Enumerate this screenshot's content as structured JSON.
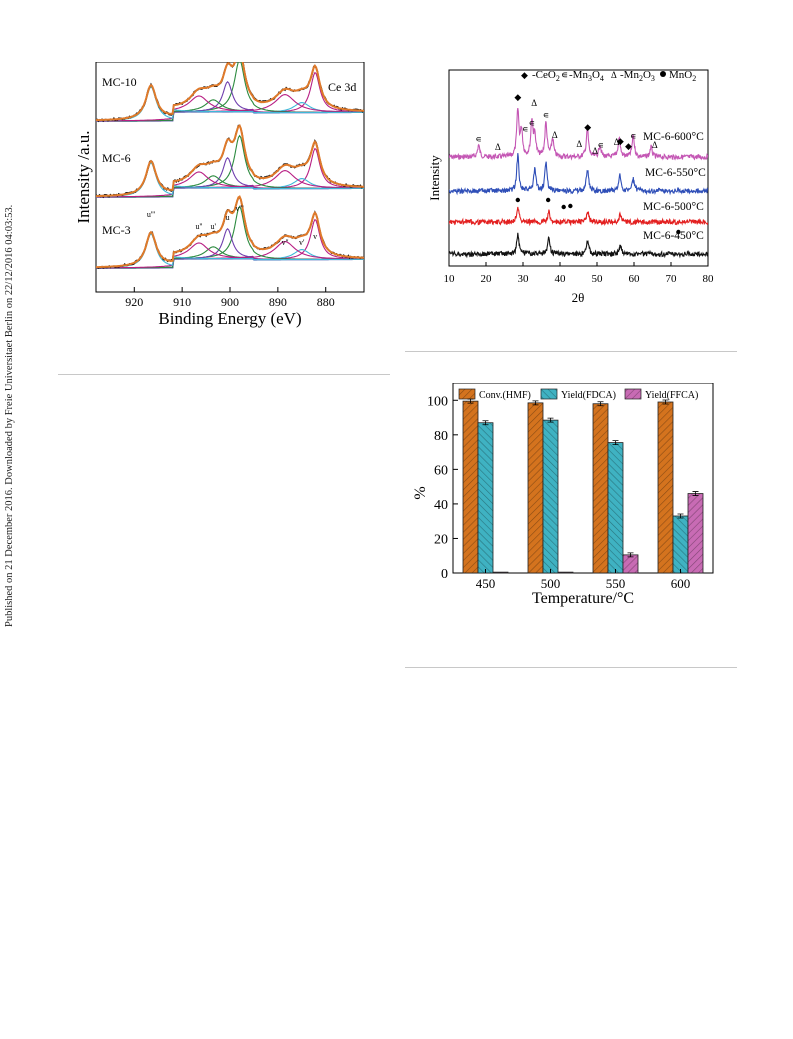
{
  "sidebar": {
    "text": "Published on 21 December 2016. Downloaded by Freie Universitaet Berlin on 22/12/2016 04:03:53."
  },
  "xps": {
    "ylabel": "Intensity /a.u.",
    "xlabel": "Binding Energy (eV)",
    "panel_label": "Ce 3d",
    "samples": [
      "MC-10",
      "MC-6",
      "MC-3"
    ],
    "peak_labels": [
      "u'''",
      "u''",
      "u'",
      "u",
      "v'''",
      "v''",
      "v'",
      "v"
    ],
    "xticks": [
      "920",
      "910",
      "900",
      "890",
      "880"
    ],
    "colors": {
      "envelope": "#e07a2a",
      "raw": "#111111",
      "baseline": "#1c3fa8",
      "v_peak": "#b81f84",
      "u_peak": "#6f3fae",
      "mid": "#2b8a3e",
      "accent": "#3fb8d8"
    }
  },
  "xrd": {
    "legend": {
      "ceo2": "-CeO",
      "mn3o4": "-Mn",
      "mn2o3": "-Mn",
      "mno2": "MnO"
    },
    "ylabel": "Intensity",
    "xlabel": "2θ",
    "xticks": [
      "10",
      "20",
      "30",
      "40",
      "50",
      "60",
      "70",
      "80"
    ],
    "samples": [
      "MC-6-600°C",
      "MC-6-550°C",
      "MC-6-500°C",
      "MC-6-450°C"
    ],
    "colors": [
      "#c456b4",
      "#2f4fb8",
      "#e32020",
      "#111111"
    ]
  },
  "bar": {
    "ylabel": "%",
    "xlabel": "Temperature/°C",
    "legend": [
      "Conv.(HMF)",
      "Yield(FDCA)",
      "Yield(FFCA)"
    ],
    "colors": [
      "#d4731e",
      "#3fb2c2",
      "#c86bb4"
    ],
    "yticks": [
      "0",
      "20",
      "40",
      "60",
      "80",
      "100"
    ]
  },
  "chart_data": [
    {
      "type": "line",
      "title": "",
      "xlabel": "Binding Energy (eV)",
      "ylabel": "Intensity /a.u.",
      "xlim": [
        928,
        872
      ],
      "annotation": "Ce 3d",
      "series": [
        {
          "name": "MC-10"
        },
        {
          "name": "MC-6"
        },
        {
          "name": "MC-3"
        }
      ],
      "peak_positions": {
        "u'''": 916.5,
        "u''": 906.5,
        "u'": 903.5,
        "u": 900.5,
        "v'''": 898.0,
        "v''": 888.5,
        "v'": 885.0,
        "v": 882.2
      }
    },
    {
      "type": "line",
      "xlabel": "2θ",
      "ylabel": "Intensity",
      "xlim": [
        10,
        80
      ],
      "series": [
        {
          "name": "MC-6-600°C"
        },
        {
          "name": "MC-6-550°C"
        },
        {
          "name": "MC-6-500°C"
        },
        {
          "name": "MC-6-450°C"
        }
      ]
    },
    {
      "type": "bar",
      "xlabel": "Temperature/°C",
      "ylabel": "%",
      "ylim": [
        0,
        110
      ],
      "categories": [
        "450",
        "500",
        "550",
        "600"
      ],
      "series": [
        {
          "name": "Conv.(HMF)",
          "values": [
            99.5,
            98.5,
            98.0,
            99.0
          ]
        },
        {
          "name": "Yield(FDCA)",
          "values": [
            87.0,
            88.5,
            75.5,
            33.0
          ]
        },
        {
          "name": "Yield(FFCA)",
          "values": [
            0.5,
            0.5,
            10.5,
            46.0
          ]
        }
      ]
    }
  ]
}
